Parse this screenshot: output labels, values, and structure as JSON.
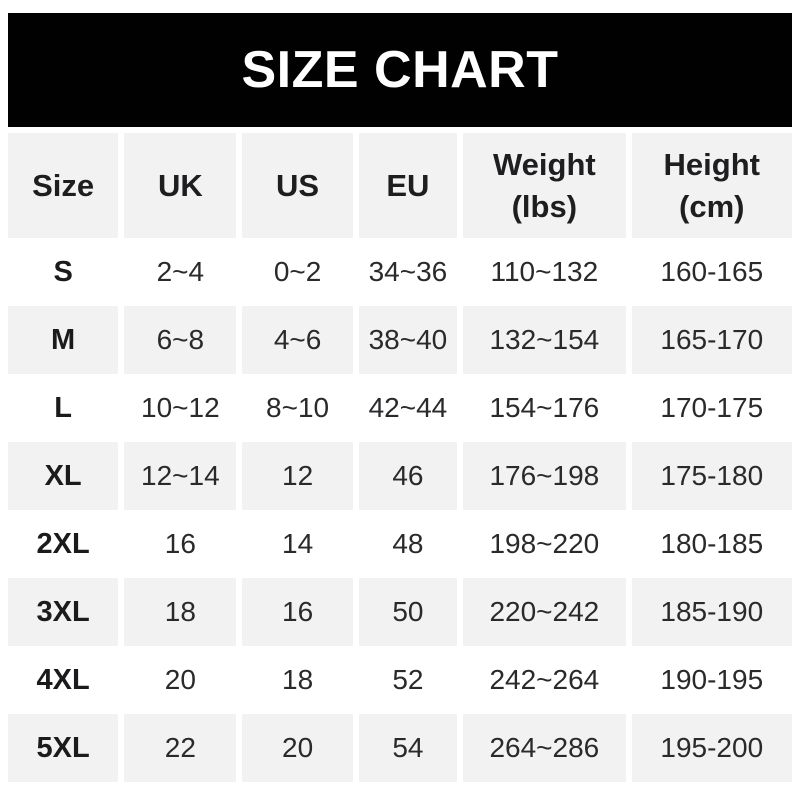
{
  "title": "SIZE CHART",
  "header": {
    "size": "Size",
    "uk": "UK",
    "us": "US",
    "eu": "EU",
    "weight_line1": "Weight",
    "weight_line2": "(lbs)",
    "height_line1": "Height",
    "height_line2": "(cm)"
  },
  "colors": {
    "banner_bg": "#010101",
    "banner_text": "#ffffff",
    "row_alt_bg": "#f2f2f2",
    "row_bg": "#ffffff",
    "text": "#2a2a2c",
    "bold_text": "#1b1b1d"
  },
  "chart_data": {
    "type": "table",
    "title": "SIZE CHART",
    "columns": [
      "Size",
      "UK",
      "US",
      "EU",
      "Weight (lbs)",
      "Height (cm)"
    ],
    "rows": [
      [
        "S",
        "2~4",
        "0~2",
        "34~36",
        "110~132",
        "160-165"
      ],
      [
        "M",
        "6~8",
        "4~6",
        "38~40",
        "132~154",
        "165-170"
      ],
      [
        "L",
        "10~12",
        "8~10",
        "42~44",
        "154~176",
        "170-175"
      ],
      [
        "XL",
        "12~14",
        "12",
        "46",
        "176~198",
        "175-180"
      ],
      [
        "2XL",
        "16",
        "14",
        "48",
        "198~220",
        "180-185"
      ],
      [
        "3XL",
        "18",
        "16",
        "50",
        "220~242",
        "185-190"
      ],
      [
        "4XL",
        "20",
        "18",
        "52",
        "242~264",
        "190-195"
      ],
      [
        "5XL",
        "22",
        "20",
        "54",
        "264~286",
        "195-200"
      ]
    ],
    "layout": {
      "header_bg": "#f2f2f2",
      "alternating_rows": true,
      "alt_row_bg": "#f2f2f2",
      "grid": "white gaps between cells on shaded rows"
    }
  }
}
